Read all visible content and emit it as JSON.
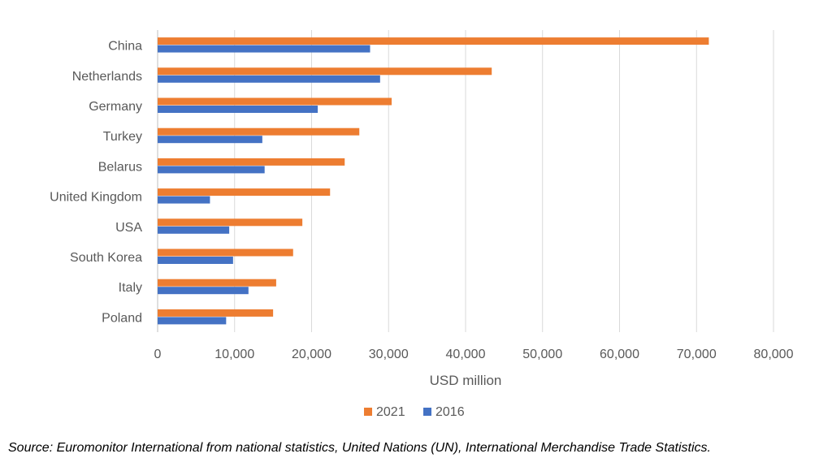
{
  "chart_data": {
    "type": "bar",
    "orientation": "horizontal",
    "categories": [
      "China",
      "Netherlands",
      "Germany",
      "Turkey",
      "Belarus",
      "United Kingdom",
      "USA",
      "South Korea",
      "Italy",
      "Poland"
    ],
    "series": [
      {
        "name": "2021",
        "color": "#ED7D31",
        "values": [
          71600,
          43400,
          30400,
          26200,
          24300,
          22400,
          18800,
          17600,
          15400,
          15000
        ]
      },
      {
        "name": "2016",
        "color": "#4472C4",
        "values": [
          27600,
          28900,
          20800,
          13600,
          13900,
          6800,
          9300,
          9800,
          11800,
          8900
        ]
      }
    ],
    "xlabel": "USD million",
    "xlim": [
      0,
      80000
    ],
    "xticks": [
      0,
      10000,
      20000,
      30000,
      40000,
      50000,
      60000,
      70000,
      80000
    ],
    "xtick_labels": [
      "0",
      "10,000",
      "20,000",
      "30,000",
      "40,000",
      "50,000",
      "60,000",
      "70,000",
      "80,000"
    ],
    "grid": "vertical",
    "legend": "bottom-center"
  },
  "source_note": "Source: Euromonitor International from national statistics, United Nations (UN), International Merchandise Trade Statistics."
}
